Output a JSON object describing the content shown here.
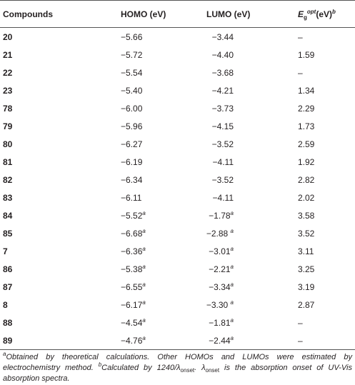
{
  "table": {
    "header": [
      "Compounds",
      "HOMO (eV)",
      "LUMO (eV)",
      {
        "symbol": "E",
        "sub": "g",
        "sup": "opt",
        "text": "(eV)",
        "note": "b"
      }
    ],
    "rows": [
      [
        "20",
        "−5.66",
        "−3.44",
        "–"
      ],
      [
        "21",
        "−5.72",
        "−4.40",
        "1.59"
      ],
      [
        "22",
        "−5.54",
        "−3.68",
        "–"
      ],
      [
        "23",
        "−5.40",
        "−4.21",
        "1.34"
      ],
      [
        "78",
        "−6.00",
        "−3.73",
        "2.29"
      ],
      [
        "79",
        "−5.96",
        "−4.15",
        "1.73"
      ],
      [
        "80",
        "−6.27",
        "−3.52",
        "2.59"
      ],
      [
        "81",
        "−6.19",
        "−4.11",
        "1.92"
      ],
      [
        "82",
        "−6.34",
        "−3.52",
        "2.82"
      ],
      [
        "83",
        "−6.11",
        "−4.11",
        "2.02"
      ],
      [
        "84",
        {
          "text": "−5.52",
          "note": "a"
        },
        {
          "text": "−1.78",
          "note": "a"
        },
        "3.58"
      ],
      [
        "85",
        {
          "text": "−6.68",
          "note": "a"
        },
        {
          "text": "−2.88 ",
          "note": "a"
        },
        "3.52"
      ],
      [
        "7",
        {
          "text": "−6.36",
          "note": "a"
        },
        {
          "text": "−3.01",
          "note": "a"
        },
        "3.11"
      ],
      [
        "86",
        {
          "text": "−5.38",
          "note": "a"
        },
        {
          "text": "−2.21",
          "note": "a"
        },
        "3.25"
      ],
      [
        "87",
        {
          "text": "−6.55",
          "note": "a"
        },
        {
          "text": "−3.34",
          "note": "a"
        },
        "3.19"
      ],
      [
        "8",
        {
          "text": "−6.17",
          "note": "a"
        },
        {
          "text": "−3.30 ",
          "note": "a"
        },
        "2.87"
      ],
      [
        "88",
        {
          "text": "−4.54",
          "note": "a"
        },
        {
          "text": "−1.81",
          "note": "a"
        },
        "–"
      ],
      [
        "89",
        {
          "text": "−4.76",
          "note": "a"
        },
        {
          "text": "−2.44",
          "note": "a"
        },
        "–"
      ]
    ],
    "footnote": [
      {
        "sup": "a"
      },
      {
        "text": "Obtained by theoretical calculations. Other HOMOs and LUMOs were estimated by electrochemistry method. "
      },
      {
        "sup": "b"
      },
      {
        "text": "Calculated by 1240/λ"
      },
      {
        "sub": "onset"
      },
      {
        "text": ". λ"
      },
      {
        "sub": "onset"
      },
      {
        "text": " is the absorption onset of UV-Vis absorption spectra."
      }
    ]
  }
}
